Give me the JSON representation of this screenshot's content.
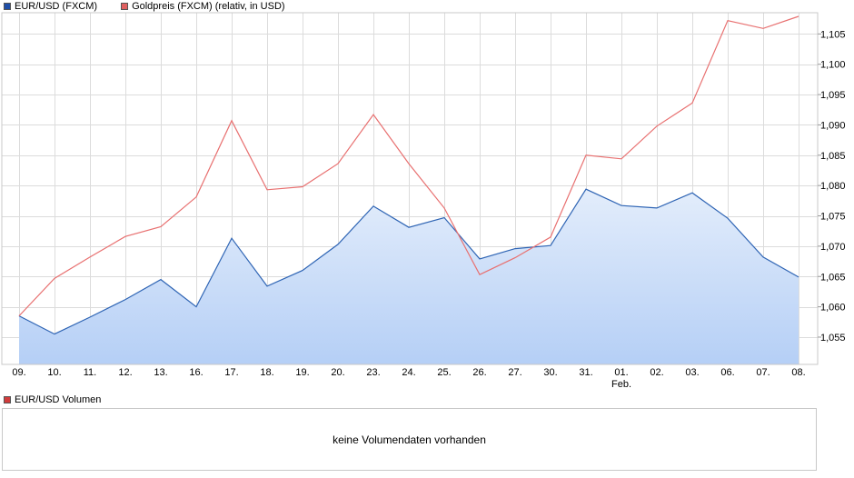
{
  "legend": [
    {
      "label": "EUR/USD (FXCM)",
      "color": "#1f4fa8"
    },
    {
      "label": "Goldpreis (FXCM) (relativ, in USD)",
      "color": "#e06060"
    }
  ],
  "volume": {
    "legend_label": "EUR/USD Volumen",
    "legend_color": "#d23c3c",
    "message": "keine Volumendaten vorhanden"
  },
  "chart_data": {
    "type": "line",
    "categories": [
      "09.",
      "10.",
      "11.",
      "12.",
      "13.",
      "16.",
      "17.",
      "18.",
      "19.",
      "20.",
      "23.",
      "24.",
      "25.",
      "26.",
      "27.",
      "30.",
      "31.",
      "01.",
      "02.",
      "03.",
      "06.",
      "07.",
      "08."
    ],
    "month_marker": {
      "index": 17,
      "label": "Feb."
    },
    "ylim": [
      1.0505,
      1.1085
    ],
    "yticks": [
      1.055,
      1.06,
      1.065,
      1.07,
      1.075,
      1.08,
      1.085,
      1.09,
      1.095,
      1.1,
      1.105
    ],
    "ytick_labels": [
      "1,055",
      "1,060",
      "1,065",
      "1,070",
      "1,075",
      "1,080",
      "1,085",
      "1,090",
      "1,095",
      "1,100",
      "1,105"
    ],
    "grid": true,
    "legend_position": "top-left",
    "series": [
      {
        "name": "EUR/USD (FXCM)",
        "style": "area",
        "color": "#2e64b4",
        "values": [
          1.0585,
          1.0555,
          1.0583,
          1.0612,
          1.0645,
          1.06,
          1.0713,
          1.0634,
          1.066,
          1.0703,
          1.0766,
          1.0731,
          1.0747,
          1.0679,
          1.0696,
          1.0701,
          1.0794,
          1.0767,
          1.0763,
          1.0788,
          1.0746,
          1.0682,
          1.0649
        ]
      },
      {
        "name": "Goldpreis (FXCM) (relativ, in USD)",
        "style": "line",
        "color": "#e87070",
        "values": [
          1.0585,
          1.0647,
          1.0682,
          1.0716,
          1.0732,
          1.0781,
          1.0907,
          1.0793,
          1.0798,
          1.0836,
          1.0917,
          1.0836,
          1.0763,
          1.0653,
          1.0681,
          1.0715,
          1.085,
          1.0844,
          1.0898,
          1.0936,
          1.1072,
          1.1059,
          1.1079
        ]
      }
    ]
  }
}
